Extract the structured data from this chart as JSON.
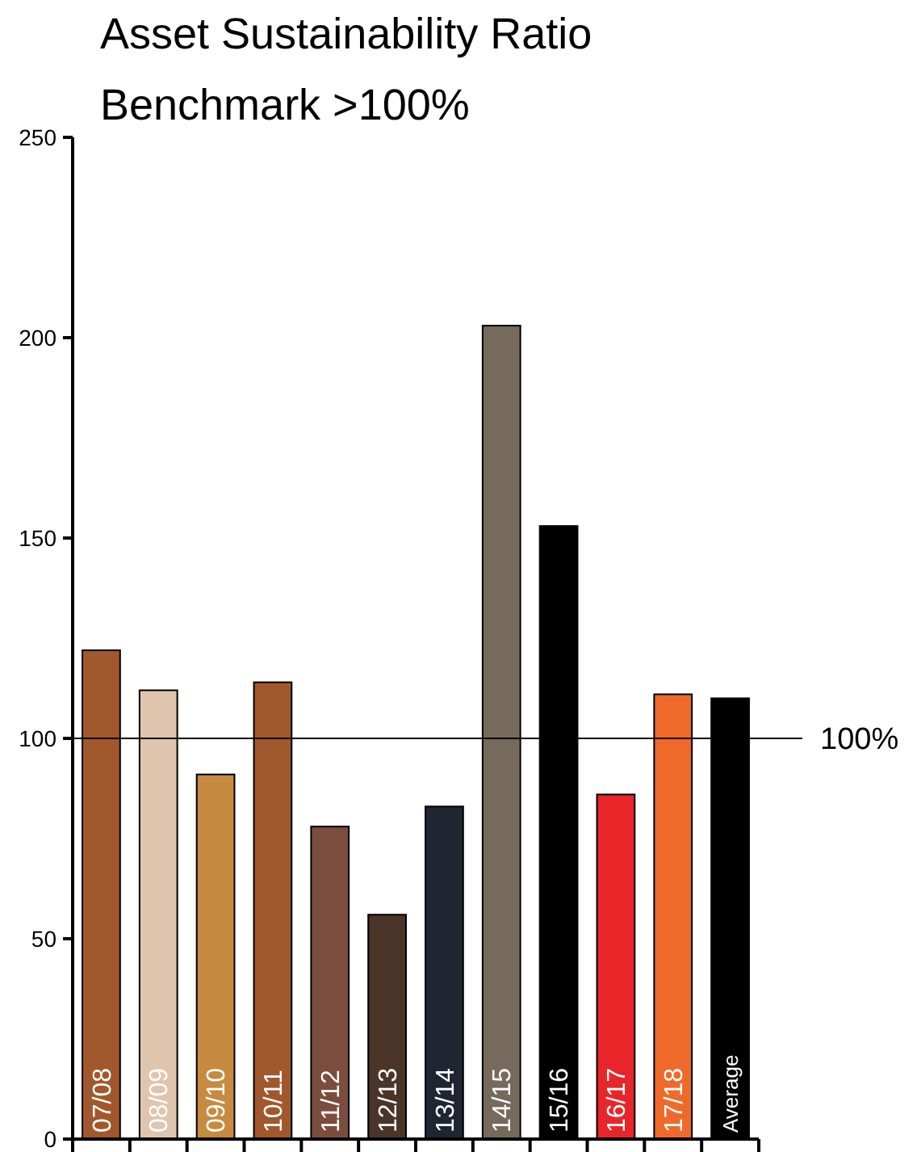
{
  "chart_data": {
    "type": "bar",
    "title": "Asset Sustainability Ratio",
    "subtitle": "Benchmark >100%",
    "categories": [
      "07/08",
      "08/09",
      "09/10",
      "10/11",
      "11/12",
      "12/13",
      "13/14",
      "14/15",
      "15/16",
      "16/17",
      "17/18",
      "Average"
    ],
    "values": [
      122,
      112,
      91,
      114,
      78,
      56,
      83,
      203,
      153,
      86,
      111,
      110
    ],
    "colors": [
      "#a0582c",
      "#dfc5ad",
      "#c68a40",
      "#a0582c",
      "#7b4d3f",
      "#4a3528",
      "#1f2631",
      "#756a5c",
      "#000000",
      "#e8262a",
      "#ef6a2a",
      "#000000"
    ],
    "ylim": [
      0,
      250
    ],
    "yticks": [
      0,
      50,
      100,
      150,
      200,
      250
    ],
    "grid": false,
    "ref_lines": [
      {
        "axis": "y",
        "value": 100,
        "label": "100%",
        "color": "#000000"
      }
    ]
  }
}
